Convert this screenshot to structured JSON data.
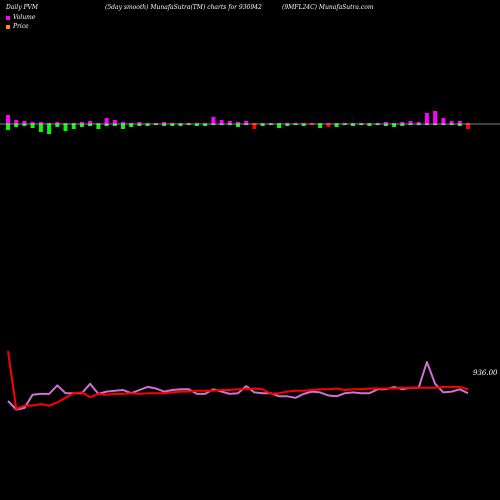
{
  "header": {
    "left": "Daily PVM",
    "center": "(5day smooth) MunafaSutra(TM) charts for 936942",
    "right": "(9MFL24C) MunafaSutra.com"
  },
  "legend": [
    {
      "label": "Volume",
      "color": "#ff00ff"
    },
    {
      "label": "Price",
      "color": "#ff8c00"
    }
  ],
  "colors": {
    "volume_up": "#ff00ff",
    "volume_down": "#00ff00",
    "volume_neg": "#ff0000",
    "volume_line": "#d070d0",
    "price_line": "#ff0000",
    "baseline": "#ffffff"
  },
  "chart_data": {
    "type": "line",
    "title": "",
    "xlabel": "",
    "ylabel": "",
    "last_price_label": "936.00",
    "volume_bars": [
      {
        "dir": "up",
        "up": 9,
        "down": 6
      },
      {
        "dir": "down",
        "up": 4,
        "down": 3
      },
      {
        "dir": "up",
        "up": 3,
        "down": 2
      },
      {
        "dir": "down",
        "up": 2,
        "down": 4
      },
      {
        "dir": "down",
        "up": 2,
        "down": 8
      },
      {
        "dir": "down",
        "up": 1,
        "down": 10
      },
      {
        "dir": "down",
        "up": 2,
        "down": 3
      },
      {
        "dir": "down",
        "up": 1,
        "down": 7
      },
      {
        "dir": "down",
        "up": 1,
        "down": 5
      },
      {
        "dir": "down",
        "up": 2,
        "down": 3
      },
      {
        "dir": "up",
        "up": 3,
        "down": 2
      },
      {
        "dir": "down",
        "up": 1,
        "down": 5
      },
      {
        "dir": "up",
        "up": 6,
        "down": 2
      },
      {
        "dir": "up",
        "up": 4,
        "down": 2
      },
      {
        "dir": "down",
        "up": 2,
        "down": 5
      },
      {
        "dir": "down",
        "up": 1,
        "down": 3
      },
      {
        "dir": "up",
        "up": 2,
        "down": 2
      },
      {
        "dir": "up",
        "up": 1,
        "down": 2
      },
      {
        "dir": "down",
        "up": 1,
        "down": 1
      },
      {
        "dir": "up",
        "up": 2,
        "down": 2
      },
      {
        "dir": "up",
        "up": 1,
        "down": 2
      },
      {
        "dir": "up",
        "up": 1,
        "down": 2
      },
      {
        "dir": "down",
        "up": 1,
        "down": 1
      },
      {
        "dir": "down",
        "up": 1,
        "down": 2
      },
      {
        "dir": "up",
        "up": 1,
        "down": 2
      },
      {
        "dir": "up",
        "up": 7,
        "down": 1
      },
      {
        "dir": "up",
        "up": 4,
        "down": 1
      },
      {
        "dir": "up",
        "up": 3,
        "down": 1
      },
      {
        "dir": "down",
        "up": 2,
        "down": 3
      },
      {
        "dir": "up",
        "up": 3,
        "down": 1
      },
      {
        "dir": "neg",
        "up": 1,
        "down": 5
      },
      {
        "dir": "down",
        "up": 1,
        "down": 2
      },
      {
        "dir": "up",
        "up": 1,
        "down": 1
      },
      {
        "dir": "down",
        "up": 1,
        "down": 4
      },
      {
        "dir": "down",
        "up": 1,
        "down": 2
      },
      {
        "dir": "down",
        "up": 1,
        "down": 1
      },
      {
        "dir": "down",
        "up": 1,
        "down": 2
      },
      {
        "dir": "neg",
        "up": 1,
        "down": 1
      },
      {
        "dir": "down",
        "up": 1,
        "down": 4
      },
      {
        "dir": "neg",
        "up": 1,
        "down": 3
      },
      {
        "dir": "down",
        "up": 1,
        "down": 3
      },
      {
        "dir": "down",
        "up": 1,
        "down": 1
      },
      {
        "dir": "down",
        "up": 1,
        "down": 2
      },
      {
        "dir": "down",
        "up": 1,
        "down": 1
      },
      {
        "dir": "down",
        "up": 1,
        "down": 2
      },
      {
        "dir": "up",
        "up": 1,
        "down": 1
      },
      {
        "dir": "up",
        "up": 2,
        "down": 2
      },
      {
        "dir": "down",
        "up": 1,
        "down": 3
      },
      {
        "dir": "up",
        "up": 2,
        "down": 2
      },
      {
        "dir": "up",
        "up": 3,
        "down": 1
      },
      {
        "dir": "up",
        "up": 2,
        "down": 1
      },
      {
        "dir": "up",
        "up": 11,
        "down": 1
      },
      {
        "dir": "up",
        "up": 13,
        "down": 1
      },
      {
        "dir": "up",
        "up": 6,
        "down": 1
      },
      {
        "dir": "up",
        "up": 3,
        "down": 1
      },
      {
        "dir": "up",
        "up": 3,
        "down": 2
      },
      {
        "dir": "neg",
        "up": 1,
        "down": 5
      }
    ],
    "series": [
      {
        "key": "volume",
        "values": [
          18,
          7,
          9,
          26,
          27,
          27,
          38,
          28,
          28,
          28,
          40,
          27,
          30,
          31,
          32,
          28,
          32,
          36,
          34,
          30,
          32,
          33,
          33,
          27,
          27,
          33,
          30,
          27,
          28,
          37,
          29,
          28,
          28,
          24,
          24,
          22,
          27,
          30,
          29,
          25,
          24,
          28,
          29,
          28,
          28,
          33,
          33,
          36,
          33,
          35,
          35,
          68,
          40,
          29,
          30,
          33,
          28
        ]
      },
      {
        "key": "price",
        "values": [
          82,
          8,
          12,
          12,
          14,
          12,
          16,
          22,
          28,
          29,
          23,
          27,
          26,
          27,
          27,
          28,
          27,
          28,
          28,
          28,
          29,
          30,
          30,
          31,
          31,
          31,
          32,
          32,
          33,
          33,
          34,
          33,
          27,
          28,
          30,
          31,
          31,
          32,
          33,
          33,
          34,
          32,
          33,
          33,
          34,
          34,
          34,
          34,
          35,
          35,
          35,
          35,
          35,
          36,
          36,
          36,
          33
        ]
      }
    ],
    "volume_range": [
      0,
      80
    ],
    "price_range": [
      0,
      90
    ],
    "grid": false
  }
}
